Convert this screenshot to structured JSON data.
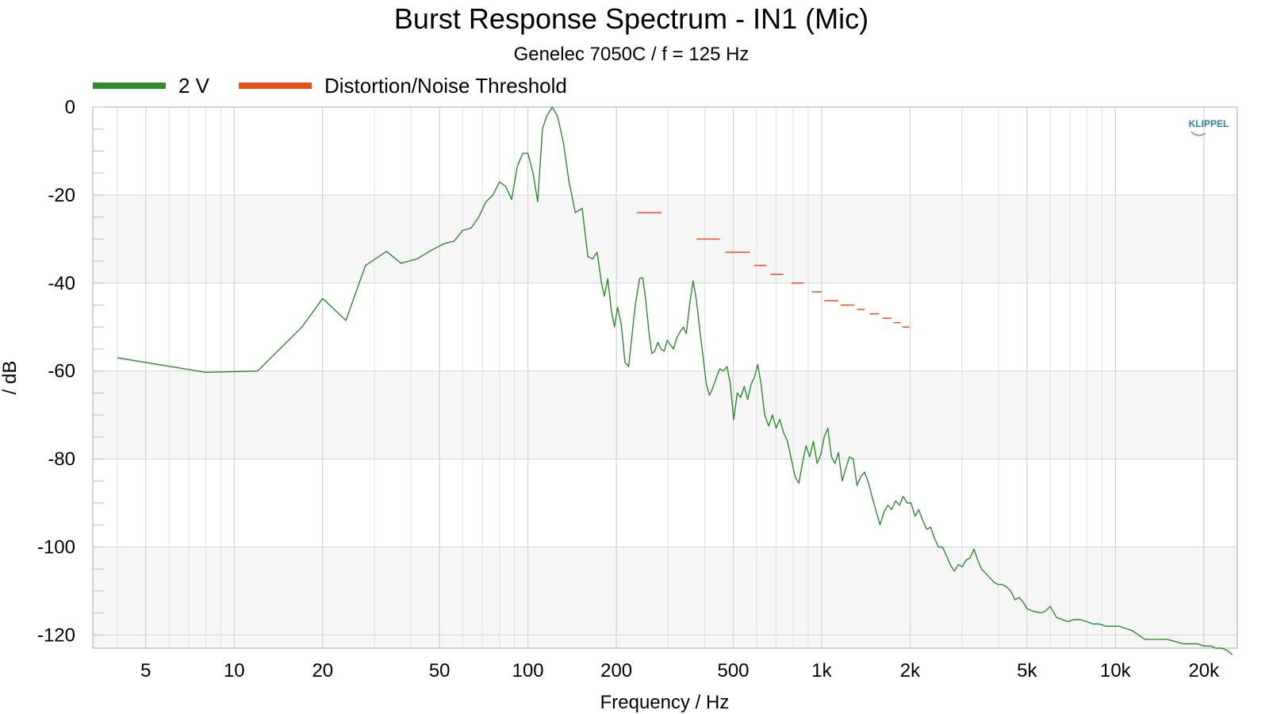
{
  "chart_data": {
    "type": "line",
    "title": "Burst Response Spectrum - IN1 (Mic)",
    "subtitle": "Genelec 7050C / f = 125 Hz",
    "xlabel": "Frequency / Hz",
    "ylabel": "/ dB",
    "x_scale": "log",
    "xlim": [
      3.3,
      26000
    ],
    "ylim": [
      -123,
      0
    ],
    "x_ticks": [
      5,
      10,
      20,
      50,
      100,
      200,
      500,
      1000,
      2000,
      5000,
      10000,
      20000
    ],
    "x_tick_labels": [
      "5",
      "10",
      "20",
      "50",
      "100",
      "200",
      "500",
      "1k",
      "2k",
      "5k",
      "10k",
      "20k"
    ],
    "y_ticks": [
      0,
      -20,
      -40,
      -60,
      -80,
      -100,
      -120
    ],
    "y_tick_labels": [
      "0",
      "-20",
      "-40",
      "-60",
      "-80",
      "-100",
      "-120"
    ],
    "grid": true,
    "legend": "top-left",
    "logo": "KLIPPEL",
    "series": [
      {
        "name": "2 V",
        "color": "#2e8b2e",
        "points": [
          [
            4,
            -57
          ],
          [
            8,
            -60.3
          ],
          [
            12,
            -60
          ],
          [
            17,
            -50
          ],
          [
            20,
            -43.5
          ],
          [
            24,
            -48.5
          ],
          [
            28,
            -36
          ],
          [
            33,
            -32.8
          ],
          [
            37,
            -35.5
          ],
          [
            42,
            -34.5
          ],
          [
            47,
            -32.5
          ],
          [
            52,
            -31
          ],
          [
            56,
            -30.5
          ],
          [
            60,
            -28
          ],
          [
            64,
            -27.5
          ],
          [
            68,
            -25
          ],
          [
            72,
            -21.5
          ],
          [
            76,
            -20
          ],
          [
            80,
            -17
          ],
          [
            84,
            -18
          ],
          [
            88,
            -21
          ],
          [
            92,
            -13.5
          ],
          [
            96,
            -10.5
          ],
          [
            100,
            -10.5
          ],
          [
            104,
            -15
          ],
          [
            108,
            -21.5
          ],
          [
            112,
            -5
          ],
          [
            116,
            -2
          ],
          [
            121,
            0
          ],
          [
            126,
            -2
          ],
          [
            132,
            -8
          ],
          [
            138,
            -17
          ],
          [
            145,
            -24
          ],
          [
            153,
            -23
          ],
          [
            160,
            -34
          ],
          [
            166,
            -34.5
          ],
          [
            172,
            -33
          ],
          [
            178,
            -40
          ],
          [
            182,
            -43
          ],
          [
            187,
            -39
          ],
          [
            192,
            -46
          ],
          [
            197,
            -50
          ],
          [
            202,
            -45.5
          ],
          [
            208,
            -49.5
          ],
          [
            214,
            -58
          ],
          [
            220,
            -59
          ],
          [
            226,
            -52
          ],
          [
            232,
            -45
          ],
          [
            240,
            -39
          ],
          [
            246,
            -38.8
          ],
          [
            252,
            -44
          ],
          [
            258,
            -51
          ],
          [
            264,
            -56
          ],
          [
            270,
            -55.5
          ],
          [
            277,
            -53.5
          ],
          [
            284,
            -55
          ],
          [
            291,
            -55.5
          ],
          [
            298,
            -53
          ],
          [
            305,
            -54
          ],
          [
            313,
            -55
          ],
          [
            321,
            -52.5
          ],
          [
            330,
            -51
          ],
          [
            338,
            -50
          ],
          [
            346,
            -51.5
          ],
          [
            355,
            -45
          ],
          [
            365,
            -39.5
          ],
          [
            375,
            -44
          ],
          [
            385,
            -51
          ],
          [
            395,
            -57
          ],
          [
            405,
            -63
          ],
          [
            415,
            -65.5
          ],
          [
            425,
            -64
          ],
          [
            438,
            -61.5
          ],
          [
            450,
            -59.5
          ],
          [
            463,
            -60
          ],
          [
            476,
            -59
          ],
          [
            489,
            -63
          ],
          [
            502,
            -71
          ],
          [
            516,
            -65
          ],
          [
            530,
            -66
          ],
          [
            545,
            -63.5
          ],
          [
            560,
            -66.5
          ],
          [
            575,
            -63
          ],
          [
            590,
            -61.5
          ],
          [
            606,
            -58.5
          ],
          [
            622,
            -63
          ],
          [
            640,
            -70
          ],
          [
            660,
            -72.5
          ],
          [
            680,
            -70
          ],
          [
            700,
            -73
          ],
          [
            720,
            -71
          ],
          [
            742,
            -74
          ],
          [
            765,
            -76
          ],
          [
            788,
            -80
          ],
          [
            812,
            -84
          ],
          [
            836,
            -85.5
          ],
          [
            860,
            -81
          ],
          [
            885,
            -77
          ],
          [
            910,
            -79.5
          ],
          [
            937,
            -76
          ],
          [
            965,
            -81
          ],
          [
            993,
            -79
          ],
          [
            1020,
            -75
          ],
          [
            1050,
            -73
          ],
          [
            1080,
            -79.5
          ],
          [
            1110,
            -81
          ],
          [
            1140,
            -78.5
          ],
          [
            1175,
            -85
          ],
          [
            1210,
            -82
          ],
          [
            1245,
            -79.5
          ],
          [
            1280,
            -80
          ],
          [
            1320,
            -86
          ],
          [
            1360,
            -84
          ],
          [
            1400,
            -83
          ],
          [
            1445,
            -85.5
          ],
          [
            1490,
            -89
          ],
          [
            1535,
            -92
          ],
          [
            1580,
            -95
          ],
          [
            1630,
            -92
          ],
          [
            1680,
            -90.5
          ],
          [
            1730,
            -91.5
          ],
          [
            1785,
            -89.5
          ],
          [
            1840,
            -90.5
          ],
          [
            1895,
            -88.5
          ],
          [
            1955,
            -90
          ],
          [
            2015,
            -90
          ],
          [
            2080,
            -93
          ],
          [
            2140,
            -91.5
          ],
          [
            2210,
            -94
          ],
          [
            2280,
            -96
          ],
          [
            2350,
            -95.5
          ],
          [
            2420,
            -98
          ],
          [
            2500,
            -100
          ],
          [
            2580,
            -100
          ],
          [
            2660,
            -102
          ],
          [
            2740,
            -104
          ],
          [
            2830,
            -105.5
          ],
          [
            2920,
            -104
          ],
          [
            3010,
            -104.5
          ],
          [
            3100,
            -103
          ],
          [
            3200,
            -102.5
          ],
          [
            3300,
            -100.5
          ],
          [
            3400,
            -103
          ],
          [
            3500,
            -105
          ],
          [
            3620,
            -106
          ],
          [
            3740,
            -107
          ],
          [
            3860,
            -108
          ],
          [
            3980,
            -108.5
          ],
          [
            4100,
            -108.5
          ],
          [
            4250,
            -109
          ],
          [
            4400,
            -110
          ],
          [
            4550,
            -112
          ],
          [
            4700,
            -111.5
          ],
          [
            4850,
            -112.5
          ],
          [
            5000,
            -114
          ],
          [
            5200,
            -114.5
          ],
          [
            5400,
            -114.8
          ],
          [
            5600,
            -115
          ],
          [
            5800,
            -114.5
          ],
          [
            6000,
            -113.5
          ],
          [
            6300,
            -116
          ],
          [
            6600,
            -116.5
          ],
          [
            6900,
            -117
          ],
          [
            7200,
            -116.5
          ],
          [
            7600,
            -116.5
          ],
          [
            8000,
            -117
          ],
          [
            8400,
            -117.5
          ],
          [
            8800,
            -117.5
          ],
          [
            9300,
            -118
          ],
          [
            9800,
            -118
          ],
          [
            10300,
            -118
          ],
          [
            10800,
            -118.5
          ],
          [
            11400,
            -119
          ],
          [
            12000,
            -120
          ],
          [
            12600,
            -121
          ],
          [
            13200,
            -121
          ],
          [
            14000,
            -121
          ],
          [
            15000,
            -121
          ],
          [
            16000,
            -121.5
          ],
          [
            17000,
            -122
          ],
          [
            18000,
            -122
          ],
          [
            19000,
            -122
          ],
          [
            20000,
            -122.5
          ],
          [
            21000,
            -122.5
          ],
          [
            22000,
            -123
          ],
          [
            23000,
            -123
          ],
          [
            24000,
            -123.5
          ],
          [
            25000,
            -124.5
          ]
        ]
      },
      {
        "name": "Distortion/Noise Threshold",
        "color": "#e8501e",
        "segments": [
          [
            235,
            285,
            -24
          ],
          [
            375,
            450,
            -30
          ],
          [
            470,
            570,
            -33
          ],
          [
            590,
            650,
            -36
          ],
          [
            670,
            740,
            -38
          ],
          [
            790,
            870,
            -40
          ],
          [
            925,
            1000,
            -42
          ],
          [
            1020,
            1140,
            -44
          ],
          [
            1160,
            1290,
            -45
          ],
          [
            1320,
            1400,
            -46
          ],
          [
            1460,
            1570,
            -47
          ],
          [
            1610,
            1730,
            -48
          ],
          [
            1760,
            1860,
            -49
          ],
          [
            1880,
            1990,
            -50
          ]
        ]
      }
    ]
  }
}
